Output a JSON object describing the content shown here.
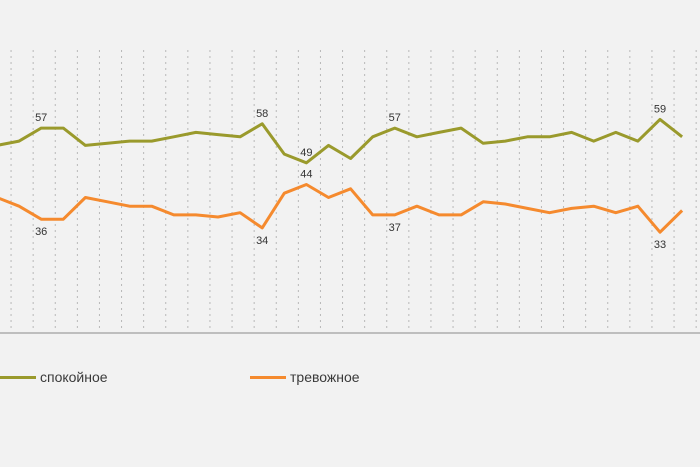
{
  "chart_data": {
    "type": "line",
    "title": "",
    "xlabel": "",
    "ylabel": "",
    "ylim": [
      10,
      75
    ],
    "grid": "vertical-dotted",
    "legend_position": "bottom",
    "series": [
      {
        "name": "спокойное",
        "color": "#9a9a2c",
        "values": [
          53,
          54,
          57,
          57,
          53,
          53.5,
          54,
          54,
          55,
          56,
          55.5,
          55,
          58,
          51,
          49,
          53,
          50,
          55,
          57,
          55,
          56,
          57,
          53.5,
          54,
          55,
          55,
          56,
          54,
          56,
          54,
          59,
          55
        ],
        "labels": [
          {
            "i": 2,
            "text": "57"
          },
          {
            "i": 12,
            "text": "58"
          },
          {
            "i": 14,
            "text": "49"
          },
          {
            "i": 18,
            "text": "57"
          },
          {
            "i": 30,
            "text": "59"
          }
        ]
      },
      {
        "name": "тревожное",
        "color": "#f58a2e",
        "values": [
          41,
          39,
          36,
          36,
          41,
          40,
          39,
          39,
          37,
          37,
          36.5,
          37.5,
          34,
          42,
          44,
          41,
          43,
          37,
          37,
          39,
          37,
          37,
          40,
          39.5,
          38.5,
          37.5,
          38.5,
          39,
          37.5,
          39,
          33,
          38
        ],
        "labels": [
          {
            "i": 2,
            "text": "36"
          },
          {
            "i": 12,
            "text": "34"
          },
          {
            "i": 14,
            "text": "44"
          },
          {
            "i": 18,
            "text": "37"
          },
          {
            "i": 30,
            "text": "33"
          }
        ]
      }
    ]
  }
}
